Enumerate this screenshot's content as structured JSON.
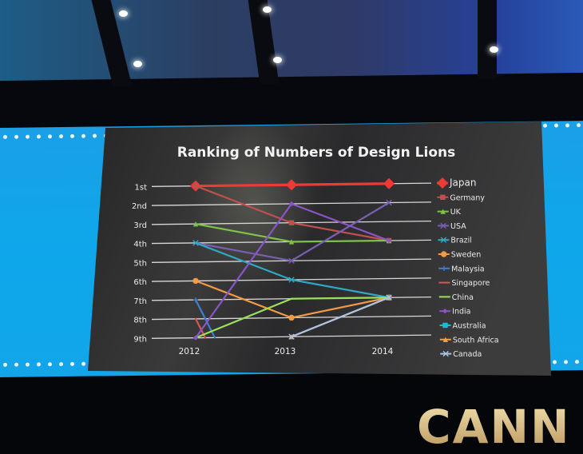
{
  "scene": {
    "bottom_text": "CANN",
    "band_color": "#12a5ea",
    "slide_bg": "#2b2b2d"
  },
  "chart_data": {
    "type": "line",
    "title": "Ranking of Numbers of Design Lions",
    "xlabel": "",
    "ylabel": "",
    "categories": [
      "2012",
      "2013",
      "2014"
    ],
    "y_tick_labels": [
      "1st",
      "2nd",
      "3rd",
      "4th",
      "5th",
      "6th",
      "7th",
      "8th",
      "9th"
    ],
    "ylim": [
      1,
      9
    ],
    "y_inverted": true,
    "grid": true,
    "legend_position": "right",
    "series": [
      {
        "name": "Japan",
        "color": "#ee3a36",
        "marker": "diamond-large",
        "values": [
          1,
          1,
          1
        ]
      },
      {
        "name": "Germany",
        "color": "#c0504d",
        "marker": "square",
        "values": [
          1,
          3,
          4
        ]
      },
      {
        "name": "UK",
        "color": "#7ec24a",
        "marker": "triangle",
        "values": [
          3,
          4,
          4
        ]
      },
      {
        "name": "USA",
        "color": "#7a5fb0",
        "marker": "x",
        "values": [
          4,
          5,
          2
        ]
      },
      {
        "name": "Brazil",
        "color": "#2fa8c6",
        "marker": "star",
        "values": [
          4,
          6,
          7
        ]
      },
      {
        "name": "Sweden",
        "color": "#f39a45",
        "marker": "circle",
        "values": [
          6,
          8,
          7
        ]
      },
      {
        "name": "Malaysia",
        "color": "#3f7fd0",
        "marker": "plus",
        "values": [
          7,
          9.6,
          null
        ],
        "note": "falls below 9th after 2012"
      },
      {
        "name": "Singapore",
        "color": "#d9534f",
        "marker": "dash",
        "values": [
          8,
          9.4,
          null
        ],
        "note": "falls below 9th after 2012"
      },
      {
        "name": "China",
        "color": "#9be05a",
        "marker": "none",
        "values": [
          9,
          7,
          7
        ]
      },
      {
        "name": "India",
        "color": "#8a55c8",
        "marker": "diamond",
        "values": [
          9,
          2,
          4
        ]
      },
      {
        "name": "Australia",
        "color": "#22b8d8",
        "marker": "square",
        "values": [
          null,
          null,
          7
        ]
      },
      {
        "name": "South Africa",
        "color": "#f2a040",
        "marker": "triangle",
        "values": [
          null,
          9,
          7
        ]
      },
      {
        "name": "Canada",
        "color": "#a9c4e4",
        "marker": "x",
        "values": [
          null,
          9,
          7
        ]
      }
    ]
  }
}
